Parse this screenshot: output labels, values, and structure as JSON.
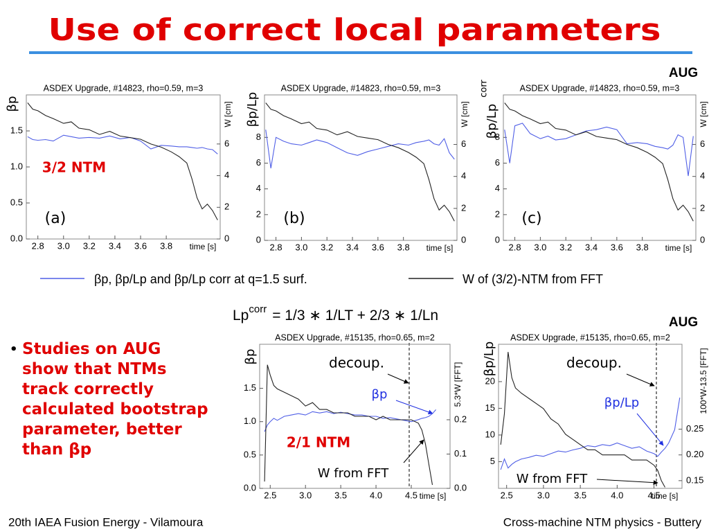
{
  "title": "Use of correct local parameters",
  "tag_top": "AUG",
  "tag_bottom": "AUG",
  "formula": {
    "lhs": "Lp",
    "sup": "corr",
    "rhs": "=  1/3 ∗ 1/LT  +  2/3 ∗ 1/Ln"
  },
  "bullet_lines": [
    "Studies on AUG",
    "show that NTMs",
    "track correctly",
    "calculated bootstrap",
    "parameter, better",
    "than βp"
  ],
  "footer_left": "20th IAEA Fusion Energy - Vilamoura",
  "footer_right": "Cross-machine NTM physics - Buttery",
  "chart_data": [
    {
      "type": "line",
      "title": "ASDEX Upgrade, #14823, rho=0.59, m=3",
      "y_label": "βp",
      "y2_label": "W [cm]",
      "x_label": "time [s]",
      "annotations": [
        "(a)",
        "3/2 NTM"
      ],
      "xlim": [
        2.71,
        4.22
      ],
      "xticks": [
        2.8,
        {
          "value": 3.0,
          "label": "3.0"
        },
        3.2,
        3.4,
        3.6,
        3.8
      ],
      "ylim": [
        0,
        2.0
      ],
      "yticks": [
        {
          "value": 0,
          "label": "0.0"
        },
        {
          "value": 0.5,
          "label": "0.5"
        },
        {
          "value": 1.0,
          "label": "1.0"
        },
        {
          "value": 1.5,
          "label": "1.5"
        }
      ],
      "y2lim": [
        0,
        9.1
      ],
      "y2ticks": [
        0,
        2,
        4,
        6
      ],
      "x": [
        2.72,
        2.76,
        2.8,
        2.86,
        2.92,
        3.0,
        3.06,
        3.12,
        3.2,
        3.28,
        3.36,
        3.44,
        3.52,
        3.6,
        3.68,
        3.76,
        3.84,
        3.9,
        3.96,
        4.0,
        4.04,
        4.08,
        4.12,
        4.16,
        4.2
      ],
      "series": [
        {
          "name": "βp, βp/Lp and βp/Lp corr at q=1.5 surf.",
          "color": "#4f5ee6",
          "values": [
            1.42,
            1.38,
            1.37,
            1.38,
            1.36,
            1.44,
            1.42,
            1.4,
            1.41,
            1.4,
            1.43,
            1.39,
            1.41,
            1.36,
            1.25,
            1.3,
            1.29,
            1.28,
            1.28,
            1.27,
            1.26,
            1.27,
            1.25,
            1.24,
            1.18
          ]
        },
        {
          "name": "W of (3/2)-NTM from FFT",
          "color": "#222222",
          "axis": "y2",
          "values": [
            8.6,
            8.2,
            8.1,
            7.8,
            7.6,
            7.3,
            7.4,
            7.0,
            6.9,
            6.6,
            6.8,
            6.5,
            6.4,
            6.3,
            6.0,
            5.8,
            5.5,
            5.2,
            4.8,
            3.8,
            2.6,
            1.9,
            2.2,
            1.8,
            1.2
          ]
        }
      ]
    },
    {
      "type": "line",
      "title": "ASDEX Upgrade, #14823, rho=0.59, m=3",
      "y_label": "βp/Lp",
      "y2_label": "W [cm]",
      "x_label": "time [s]",
      "annotations": [
        "(b)"
      ],
      "xlim": [
        2.71,
        4.22
      ],
      "xticks": [
        2.8,
        {
          "value": 3.0,
          "label": "3.0"
        },
        3.2,
        3.4,
        3.6,
        3.8
      ],
      "ylim": [
        0,
        11.3
      ],
      "yticks": [
        0,
        2,
        4,
        6,
        8
      ],
      "y2lim": [
        0,
        9.1
      ],
      "y2ticks": [
        0,
        2,
        4,
        6
      ],
      "x": [
        2.72,
        2.76,
        2.8,
        2.86,
        2.92,
        3.0,
        3.06,
        3.12,
        3.2,
        3.28,
        3.36,
        3.44,
        3.52,
        3.6,
        3.68,
        3.76,
        3.84,
        3.9,
        3.96,
        4.0,
        4.04,
        4.08,
        4.12,
        4.16,
        4.2
      ],
      "series": [
        {
          "color": "#4f5ee6",
          "values": [
            8.6,
            5.6,
            8.0,
            7.7,
            7.5,
            7.4,
            7.6,
            7.8,
            7.6,
            7.2,
            6.8,
            6.6,
            6.9,
            7.1,
            7.3,
            7.5,
            7.4,
            7.6,
            7.7,
            7.8,
            7.5,
            7.4,
            7.9,
            6.8,
            6.3
          ]
        },
        {
          "color": "#222222",
          "axis": "y2",
          "values": [
            8.6,
            8.2,
            8.1,
            7.8,
            7.6,
            7.3,
            7.4,
            7.0,
            6.9,
            6.6,
            6.8,
            6.5,
            6.4,
            6.3,
            6.0,
            5.8,
            5.5,
            5.2,
            4.8,
            3.8,
            2.6,
            1.9,
            2.2,
            1.8,
            1.2
          ]
        }
      ]
    },
    {
      "type": "line",
      "title": "ASDEX Upgrade, #14823, rho=0.59, m=3",
      "y_label": "βp/Lp",
      "y_label_sup": "corr",
      "y2_label": "W [cm]",
      "x_label": "time [s]",
      "annotations": [
        "(c)"
      ],
      "xlim": [
        2.71,
        4.22
      ],
      "xticks": [
        2.8,
        {
          "value": 3.0,
          "label": "3.0"
        },
        3.2,
        3.4,
        3.6,
        3.8
      ],
      "ylim": [
        0,
        11.3
      ],
      "yticks": [
        0,
        2,
        4,
        6,
        8
      ],
      "y2lim": [
        0,
        9.1
      ],
      "y2ticks": [
        0,
        2,
        4,
        6
      ],
      "x": [
        2.72,
        2.76,
        2.8,
        2.86,
        2.92,
        3.0,
        3.06,
        3.12,
        3.2,
        3.28,
        3.36,
        3.44,
        3.52,
        3.6,
        3.68,
        3.76,
        3.84,
        3.9,
        3.96,
        4.0,
        4.04,
        4.08,
        4.12,
        4.16,
        4.2
      ],
      "series": [
        {
          "color": "#4f5ee6",
          "values": [
            8.6,
            6.0,
            8.9,
            9.1,
            8.3,
            7.9,
            8.1,
            7.8,
            7.9,
            8.2,
            8.5,
            8.6,
            8.8,
            8.6,
            7.5,
            7.6,
            7.5,
            7.3,
            7.2,
            7.1,
            7.4,
            8.2,
            8.0,
            5.0,
            8.1
          ]
        },
        {
          "color": "#222222",
          "axis": "y2",
          "values": [
            8.6,
            8.2,
            8.1,
            7.8,
            7.6,
            7.3,
            7.4,
            7.0,
            6.9,
            6.6,
            6.8,
            6.5,
            6.4,
            6.3,
            6.0,
            5.8,
            5.5,
            5.2,
            4.8,
            3.8,
            2.6,
            1.9,
            2.2,
            1.8,
            1.2
          ]
        }
      ]
    },
    {
      "type": "line",
      "title": "ASDEX Upgrade, #15135, rho=0.65, m=2",
      "y_label": "βp",
      "y2_label": "5.3*W [FFT]",
      "x_label": "time [s]",
      "annotations": [
        "decoup.",
        "βp",
        "2/1 NTM",
        "W from FFT"
      ],
      "xlim": [
        2.35,
        5.05
      ],
      "xticks": [
        2.5,
        {
          "value": 3.0,
          "label": "3.0"
        },
        3.5,
        {
          "value": 4.0,
          "label": "4.0"
        },
        4.5
      ],
      "ylim": [
        0,
        2.16
      ],
      "yticks": [
        {
          "value": 0,
          "label": "0.0"
        },
        {
          "value": 0.5,
          "label": "0.5"
        },
        {
          "value": 1.0,
          "label": "1.0"
        },
        {
          "value": 1.5,
          "label": "1.5"
        }
      ],
      "y2lim": [
        0,
        0.42
      ],
      "y2ticks": [
        {
          "value": 0,
          "label": "0.0"
        },
        0.1,
        0.2
      ],
      "x": [
        2.42,
        2.46,
        2.5,
        2.55,
        2.6,
        2.7,
        2.8,
        2.9,
        3.0,
        3.1,
        3.2,
        3.3,
        3.4,
        3.5,
        3.6,
        3.7,
        3.8,
        3.9,
        4.0,
        4.1,
        4.2,
        4.3,
        4.4,
        4.5,
        4.6,
        4.65,
        4.7,
        4.75,
        4.8,
        4.85
      ],
      "series": [
        {
          "color": "#4f5ee6",
          "values": [
            0.85,
            0.95,
            1.0,
            1.05,
            1.02,
            1.08,
            1.1,
            1.12,
            1.1,
            1.15,
            1.13,
            1.15,
            1.12,
            1.14,
            1.12,
            1.1,
            1.1,
            1.08,
            1.08,
            1.05,
            1.06,
            1.04,
            1.02,
            1.0,
            1.03,
            1.05,
            1.06,
            1.08,
            1.12,
            1.18
          ]
        },
        {
          "color": "#222222",
          "axis": "y2",
          "values": [
            0.02,
            0.36,
            0.33,
            0.3,
            0.29,
            0.28,
            0.27,
            0.26,
            0.24,
            0.25,
            0.23,
            0.23,
            0.22,
            0.22,
            0.22,
            0.21,
            0.21,
            0.21,
            0.2,
            0.21,
            0.2,
            0.2,
            0.2,
            0.2,
            0.19,
            0.17,
            0.13,
            0.07,
            0.01,
            null
          ]
        }
      ]
    },
    {
      "type": "line",
      "title": "ASDEX Upgrade, #15135, rho=0.65, m=2",
      "y_label": "βp/Lp",
      "y2_label": "100*W-13.5 [FFT]",
      "x_label": "time [s]",
      "annotations": [
        "decoup.",
        "βp/Lp",
        "W from FFT"
      ],
      "xlim": [
        2.39,
        4.88
      ],
      "xticks": [
        2.5,
        {
          "value": 3.0,
          "label": "3.0"
        },
        3.5,
        {
          "value": 4.0,
          "label": "4.0"
        },
        4.5
      ],
      "ylim": [
        0,
        27
      ],
      "yticks": [
        5,
        10,
        15,
        20
      ],
      "y2lim": [
        0.135,
        0.415
      ],
      "y2ticks": [
        0.15,
        {
          "value": 0.2,
          "label": "0.20"
        },
        0.25
      ],
      "x": [
        2.42,
        2.47,
        2.52,
        2.57,
        2.62,
        2.7,
        2.8,
        2.9,
        3.0,
        3.1,
        3.2,
        3.3,
        3.4,
        3.5,
        3.6,
        3.7,
        3.8,
        3.9,
        4.0,
        4.1,
        4.2,
        4.3,
        4.4,
        4.5,
        4.55,
        4.6,
        4.65,
        4.7,
        4.78,
        4.85
      ],
      "series": [
        {
          "color": "#4f5ee6",
          "values": [
            3.5,
            5.5,
            3.8,
            4.5,
            5.0,
            5.5,
            5.8,
            6.2,
            6.0,
            6.5,
            7.0,
            6.8,
            7.2,
            7.5,
            8.0,
            7.8,
            8.2,
            8.0,
            8.5,
            8.0,
            7.5,
            7.8,
            7.0,
            6.5,
            6.0,
            6.8,
            7.5,
            8.5,
            11,
            17
          ]
        },
        {
          "color": "#222222",
          "axis": "y2",
          "values": [
            0.22,
            0.28,
            0.4,
            0.35,
            0.33,
            0.32,
            0.31,
            0.3,
            0.29,
            0.27,
            0.26,
            0.24,
            0.23,
            0.22,
            0.21,
            0.21,
            0.2,
            0.2,
            0.2,
            0.2,
            0.19,
            0.19,
            0.19,
            0.18,
            0.17,
            0.15,
            0.137,
            null,
            null,
            null
          ]
        }
      ]
    }
  ]
}
